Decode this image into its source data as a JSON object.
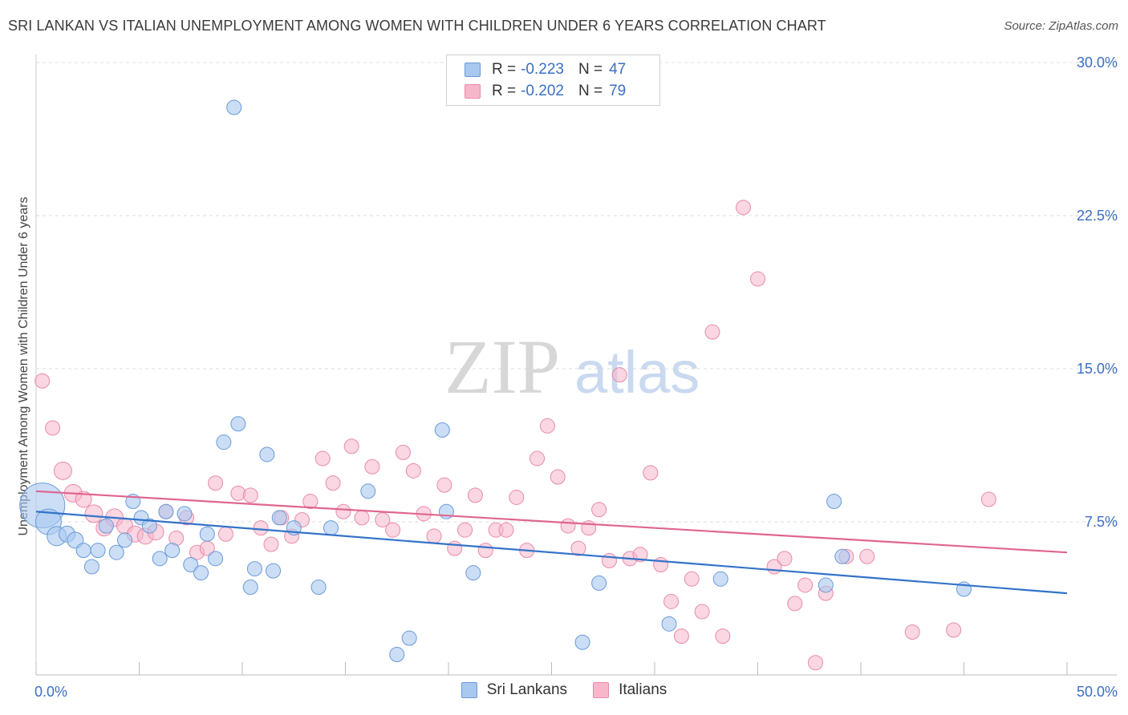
{
  "header": {
    "title": "SRI LANKAN VS ITALIAN UNEMPLOYMENT AMONG WOMEN WITH CHILDREN UNDER 6 YEARS CORRELATION CHART",
    "source": "Source: ZipAtlas.com"
  },
  "watermark": {
    "zip": "ZIP",
    "atlas": "atlas"
  },
  "legend_top": {
    "rows": [
      {
        "label": "R =",
        "r": "-0.223",
        "n_label": "N =",
        "n": "47"
      },
      {
        "label": "R =",
        "r": "-0.202",
        "n_label": "N =",
        "n": "79"
      }
    ]
  },
  "legend_bottom": {
    "items": [
      "Sri Lankans",
      "Italians"
    ]
  },
  "colors": {
    "sri_lankans_fill": "#a9c8f0",
    "sri_lankans_stroke": "#6a9ad8",
    "sri_lankans_line": "#3373c9",
    "italians_fill": "#f6b7cb",
    "italians_stroke": "#e98aa9",
    "italians_line": "#e0668e",
    "tick_label": "#3b6fc4",
    "grid": "#dddddd"
  },
  "chart_data": {
    "type": "scatter",
    "title": "SRI LANKAN VS ITALIAN UNEMPLOYMENT AMONG WOMEN WITH CHILDREN UNDER 6 YEARS CORRELATION CHART",
    "xlabel": "",
    "ylabel": "Unemployment Among Women with Children Under 6 years",
    "xlim": [
      0,
      50
    ],
    "ylim": [
      0,
      30
    ],
    "x_tick_labels": [
      "0.0%",
      "50.0%"
    ],
    "y_ticks": [
      7.5,
      15.0,
      22.5,
      30.0
    ],
    "y_tick_labels": [
      "7.5%",
      "15.0%",
      "22.5%",
      "30.0%"
    ],
    "grid": "horizontal dashed",
    "legend_position": "top-center and bottom",
    "series": [
      {
        "name": "Sri Lankans",
        "r": -0.223,
        "n": 47,
        "trend": {
          "x": [
            0,
            50
          ],
          "y": [
            8.0,
            4.0
          ]
        },
        "points": [
          {
            "x": 0.3,
            "y": 8.3,
            "s": 28
          },
          {
            "x": 0.6,
            "y": 7.5,
            "s": 16
          },
          {
            "x": 1.0,
            "y": 6.8,
            "s": 12
          },
          {
            "x": 1.5,
            "y": 6.9,
            "s": 10
          },
          {
            "x": 1.9,
            "y": 6.6,
            "s": 10
          },
          {
            "x": 2.3,
            "y": 6.1,
            "s": 9
          },
          {
            "x": 2.7,
            "y": 5.3,
            "s": 9
          },
          {
            "x": 3.0,
            "y": 6.1,
            "s": 9
          },
          {
            "x": 3.4,
            "y": 7.3,
            "s": 9
          },
          {
            "x": 3.9,
            "y": 6.0,
            "s": 9
          },
          {
            "x": 4.3,
            "y": 6.6,
            "s": 9
          },
          {
            "x": 4.7,
            "y": 8.5,
            "s": 9
          },
          {
            "x": 5.1,
            "y": 7.7,
            "s": 9
          },
          {
            "x": 5.5,
            "y": 7.3,
            "s": 9
          },
          {
            "x": 6.0,
            "y": 5.7,
            "s": 9
          },
          {
            "x": 6.3,
            "y": 8.0,
            "s": 9
          },
          {
            "x": 6.6,
            "y": 6.1,
            "s": 9
          },
          {
            "x": 7.2,
            "y": 7.9,
            "s": 9
          },
          {
            "x": 7.5,
            "y": 5.4,
            "s": 9
          },
          {
            "x": 8.0,
            "y": 5.0,
            "s": 9
          },
          {
            "x": 8.3,
            "y": 6.9,
            "s": 9
          },
          {
            "x": 8.7,
            "y": 5.7,
            "s": 9
          },
          {
            "x": 9.1,
            "y": 11.4,
            "s": 9
          },
          {
            "x": 9.6,
            "y": 27.8,
            "s": 9
          },
          {
            "x": 9.8,
            "y": 12.3,
            "s": 9
          },
          {
            "x": 10.4,
            "y": 4.3,
            "s": 9
          },
          {
            "x": 10.6,
            "y": 5.2,
            "s": 9
          },
          {
            "x": 11.2,
            "y": 10.8,
            "s": 9
          },
          {
            "x": 11.5,
            "y": 5.1,
            "s": 9
          },
          {
            "x": 11.8,
            "y": 7.7,
            "s": 9
          },
          {
            "x": 12.5,
            "y": 7.2,
            "s": 9
          },
          {
            "x": 13.7,
            "y": 4.3,
            "s": 9
          },
          {
            "x": 14.3,
            "y": 7.2,
            "s": 9
          },
          {
            "x": 16.1,
            "y": 9.0,
            "s": 9
          },
          {
            "x": 17.5,
            "y": 1.0,
            "s": 9
          },
          {
            "x": 18.1,
            "y": 1.8,
            "s": 9
          },
          {
            "x": 19.7,
            "y": 12.0,
            "s": 9
          },
          {
            "x": 19.9,
            "y": 8.0,
            "s": 9
          },
          {
            "x": 21.2,
            "y": 5.0,
            "s": 9
          },
          {
            "x": 26.5,
            "y": 1.6,
            "s": 9
          },
          {
            "x": 27.3,
            "y": 4.5,
            "s": 9
          },
          {
            "x": 30.7,
            "y": 2.5,
            "s": 9
          },
          {
            "x": 33.2,
            "y": 4.7,
            "s": 9
          },
          {
            "x": 38.3,
            "y": 4.4,
            "s": 9
          },
          {
            "x": 38.7,
            "y": 8.5,
            "s": 9
          },
          {
            "x": 39.1,
            "y": 5.8,
            "s": 9
          },
          {
            "x": 45.0,
            "y": 4.2,
            "s": 9
          }
        ]
      },
      {
        "name": "Italians",
        "r": -0.202,
        "n": 79,
        "trend": {
          "x": [
            0,
            50
          ],
          "y": [
            9.0,
            6.0
          ]
        },
        "points": [
          {
            "x": 0.3,
            "y": 14.4,
            "s": 9
          },
          {
            "x": 0.8,
            "y": 12.1,
            "s": 9
          },
          {
            "x": 1.3,
            "y": 10.0,
            "s": 11
          },
          {
            "x": 1.8,
            "y": 8.9,
            "s": 11
          },
          {
            "x": 2.3,
            "y": 8.6,
            "s": 10
          },
          {
            "x": 2.8,
            "y": 7.9,
            "s": 11
          },
          {
            "x": 3.3,
            "y": 7.2,
            "s": 10
          },
          {
            "x": 3.8,
            "y": 7.7,
            "s": 11
          },
          {
            "x": 4.3,
            "y": 7.3,
            "s": 10
          },
          {
            "x": 4.8,
            "y": 6.9,
            "s": 10
          },
          {
            "x": 5.3,
            "y": 6.8,
            "s": 10
          },
          {
            "x": 5.8,
            "y": 7.0,
            "s": 10
          },
          {
            "x": 6.3,
            "y": 8.0,
            "s": 9
          },
          {
            "x": 6.8,
            "y": 6.7,
            "s": 9
          },
          {
            "x": 7.3,
            "y": 7.7,
            "s": 9
          },
          {
            "x": 7.8,
            "y": 6.0,
            "s": 9
          },
          {
            "x": 8.3,
            "y": 6.2,
            "s": 9
          },
          {
            "x": 8.7,
            "y": 9.4,
            "s": 9
          },
          {
            "x": 9.2,
            "y": 6.9,
            "s": 9
          },
          {
            "x": 9.8,
            "y": 8.9,
            "s": 9
          },
          {
            "x": 10.4,
            "y": 8.8,
            "s": 9
          },
          {
            "x": 10.9,
            "y": 7.2,
            "s": 9
          },
          {
            "x": 11.4,
            "y": 6.4,
            "s": 9
          },
          {
            "x": 11.9,
            "y": 7.7,
            "s": 9
          },
          {
            "x": 12.4,
            "y": 6.8,
            "s": 9
          },
          {
            "x": 12.9,
            "y": 7.6,
            "s": 9
          },
          {
            "x": 13.3,
            "y": 8.5,
            "s": 9
          },
          {
            "x": 13.9,
            "y": 10.6,
            "s": 9
          },
          {
            "x": 14.4,
            "y": 9.4,
            "s": 9
          },
          {
            "x": 14.9,
            "y": 8.0,
            "s": 9
          },
          {
            "x": 15.3,
            "y": 11.2,
            "s": 9
          },
          {
            "x": 15.8,
            "y": 7.7,
            "s": 9
          },
          {
            "x": 16.3,
            "y": 10.2,
            "s": 9
          },
          {
            "x": 16.8,
            "y": 7.6,
            "s": 9
          },
          {
            "x": 17.3,
            "y": 7.1,
            "s": 9
          },
          {
            "x": 17.8,
            "y": 10.9,
            "s": 9
          },
          {
            "x": 18.3,
            "y": 10.0,
            "s": 9
          },
          {
            "x": 18.8,
            "y": 7.9,
            "s": 9
          },
          {
            "x": 19.3,
            "y": 6.8,
            "s": 9
          },
          {
            "x": 19.8,
            "y": 9.3,
            "s": 9
          },
          {
            "x": 20.3,
            "y": 6.2,
            "s": 9
          },
          {
            "x": 20.8,
            "y": 7.1,
            "s": 9
          },
          {
            "x": 21.3,
            "y": 8.8,
            "s": 9
          },
          {
            "x": 21.8,
            "y": 6.1,
            "s": 9
          },
          {
            "x": 22.3,
            "y": 7.1,
            "s": 9
          },
          {
            "x": 22.8,
            "y": 7.1,
            "s": 9
          },
          {
            "x": 23.3,
            "y": 8.7,
            "s": 9
          },
          {
            "x": 23.8,
            "y": 6.1,
            "s": 9
          },
          {
            "x": 24.3,
            "y": 10.6,
            "s": 9
          },
          {
            "x": 24.8,
            "y": 12.2,
            "s": 9
          },
          {
            "x": 25.3,
            "y": 9.7,
            "s": 9
          },
          {
            "x": 25.8,
            "y": 7.3,
            "s": 9
          },
          {
            "x": 26.3,
            "y": 6.2,
            "s": 9
          },
          {
            "x": 26.8,
            "y": 7.2,
            "s": 9
          },
          {
            "x": 27.3,
            "y": 8.1,
            "s": 9
          },
          {
            "x": 27.8,
            "y": 5.6,
            "s": 9
          },
          {
            "x": 28.3,
            "y": 14.7,
            "s": 9
          },
          {
            "x": 28.8,
            "y": 5.7,
            "s": 9
          },
          {
            "x": 29.3,
            "y": 5.9,
            "s": 9
          },
          {
            "x": 29.8,
            "y": 9.9,
            "s": 9
          },
          {
            "x": 30.3,
            "y": 5.4,
            "s": 9
          },
          {
            "x": 30.8,
            "y": 3.6,
            "s": 9
          },
          {
            "x": 31.3,
            "y": 1.9,
            "s": 9
          },
          {
            "x": 31.8,
            "y": 4.7,
            "s": 9
          },
          {
            "x": 32.3,
            "y": 3.1,
            "s": 9
          },
          {
            "x": 32.8,
            "y": 16.8,
            "s": 9
          },
          {
            "x": 33.3,
            "y": 1.9,
            "s": 9
          },
          {
            "x": 34.3,
            "y": 22.9,
            "s": 9
          },
          {
            "x": 35.0,
            "y": 19.4,
            "s": 9
          },
          {
            "x": 35.8,
            "y": 5.3,
            "s": 9
          },
          {
            "x": 36.3,
            "y": 5.7,
            "s": 9
          },
          {
            "x": 36.8,
            "y": 3.5,
            "s": 9
          },
          {
            "x": 37.3,
            "y": 4.4,
            "s": 9
          },
          {
            "x": 37.8,
            "y": 0.6,
            "s": 9
          },
          {
            "x": 38.3,
            "y": 4.0,
            "s": 9
          },
          {
            "x": 39.3,
            "y": 5.8,
            "s": 9
          },
          {
            "x": 40.3,
            "y": 5.8,
            "s": 9
          },
          {
            "x": 42.5,
            "y": 2.1,
            "s": 9
          },
          {
            "x": 44.5,
            "y": 2.2,
            "s": 9
          },
          {
            "x": 46.2,
            "y": 8.6,
            "s": 9
          }
        ]
      }
    ]
  }
}
